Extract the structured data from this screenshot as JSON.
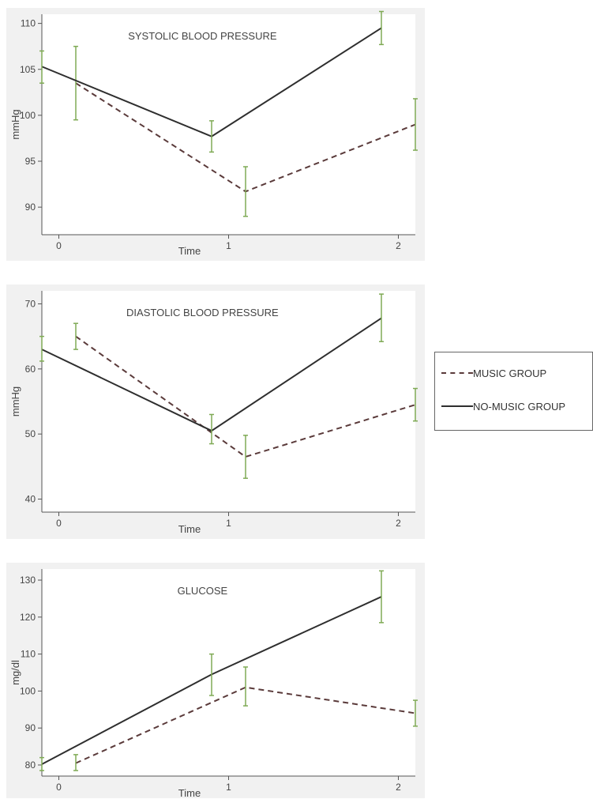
{
  "colors": {
    "music": "#5a3a3a",
    "no_music": "#2e2e2e",
    "error_bar": "#7faa55",
    "plot_bg": "#ffffff",
    "axis": "#555555",
    "text": "#444444"
  },
  "legend": {
    "music_label": "MUSIC GROUP",
    "no_music_label": "NO-MUSIC GROUP"
  },
  "chart_data": [
    {
      "type": "line",
      "title": "SYSTOLIC BLOOD PRESSURE",
      "xlabel": "Time",
      "ylabel": "mmHg",
      "xlim": [
        -0.1,
        2.1
      ],
      "ylim": [
        87,
        111
      ],
      "x_ticks": [
        0,
        1,
        2
      ],
      "y_ticks": [
        90,
        95,
        100,
        105,
        110
      ],
      "grid": false,
      "series": [
        {
          "name": "MUSIC GROUP",
          "style": "dashed",
          "x": [
            0.1,
            1.1,
            2.1
          ],
          "y": [
            103.5,
            91.7,
            99.0
          ],
          "err_low": [
            99.5,
            89.0,
            96.2
          ],
          "err_high": [
            107.5,
            94.4,
            101.8
          ]
        },
        {
          "name": "NO-MUSIC GROUP",
          "style": "solid",
          "x": [
            -0.1,
            0.9,
            1.9
          ],
          "y": [
            105.3,
            97.7,
            109.5
          ],
          "err_low": [
            103.5,
            96.0,
            107.7
          ],
          "err_high": [
            107.0,
            99.4,
            111.3
          ]
        }
      ]
    },
    {
      "type": "line",
      "title": "DIASTOLIC BLOOD PRESSURE",
      "xlabel": "Time",
      "ylabel": "mmHg",
      "xlim": [
        -0.1,
        2.1
      ],
      "ylim": [
        38,
        72
      ],
      "x_ticks": [
        0,
        1,
        2
      ],
      "y_ticks": [
        40,
        50,
        60,
        70
      ],
      "grid": false,
      "series": [
        {
          "name": "MUSIC GROUP",
          "style": "dashed",
          "x": [
            0.1,
            1.1,
            2.1
          ],
          "y": [
            65.0,
            46.5,
            54.5
          ],
          "err_low": [
            63.0,
            43.2,
            52.0
          ],
          "err_high": [
            67.0,
            49.8,
            57.0
          ]
        },
        {
          "name": "NO-MUSIC GROUP",
          "style": "solid",
          "x": [
            -0.1,
            0.9,
            1.9
          ],
          "y": [
            63.0,
            50.5,
            67.8
          ],
          "err_low": [
            61.2,
            48.5,
            64.2
          ],
          "err_high": [
            65.0,
            53.0,
            71.5
          ]
        }
      ]
    },
    {
      "type": "line",
      "title": "GLUCOSE",
      "xlabel": "Time",
      "ylabel": "mg/dl",
      "xlim": [
        -0.1,
        2.1
      ],
      "ylim": [
        77,
        133
      ],
      "x_ticks": [
        0,
        1,
        2
      ],
      "y_ticks": [
        80,
        90,
        100,
        110,
        120,
        130
      ],
      "grid": false,
      "series": [
        {
          "name": "MUSIC GROUP",
          "style": "dashed",
          "x": [
            0.1,
            1.1,
            2.1
          ],
          "y": [
            80.5,
            101.0,
            94.0
          ],
          "err_low": [
            78.5,
            96.0,
            90.5
          ],
          "err_high": [
            82.8,
            106.5,
            97.5
          ]
        },
        {
          "name": "NO-MUSIC GROUP",
          "style": "solid",
          "x": [
            -0.1,
            0.9,
            1.9
          ],
          "y": [
            80.2,
            104.5,
            125.5
          ],
          "err_low": [
            78.5,
            98.8,
            118.5
          ],
          "err_high": [
            82.0,
            110.0,
            132.5
          ]
        }
      ]
    }
  ]
}
